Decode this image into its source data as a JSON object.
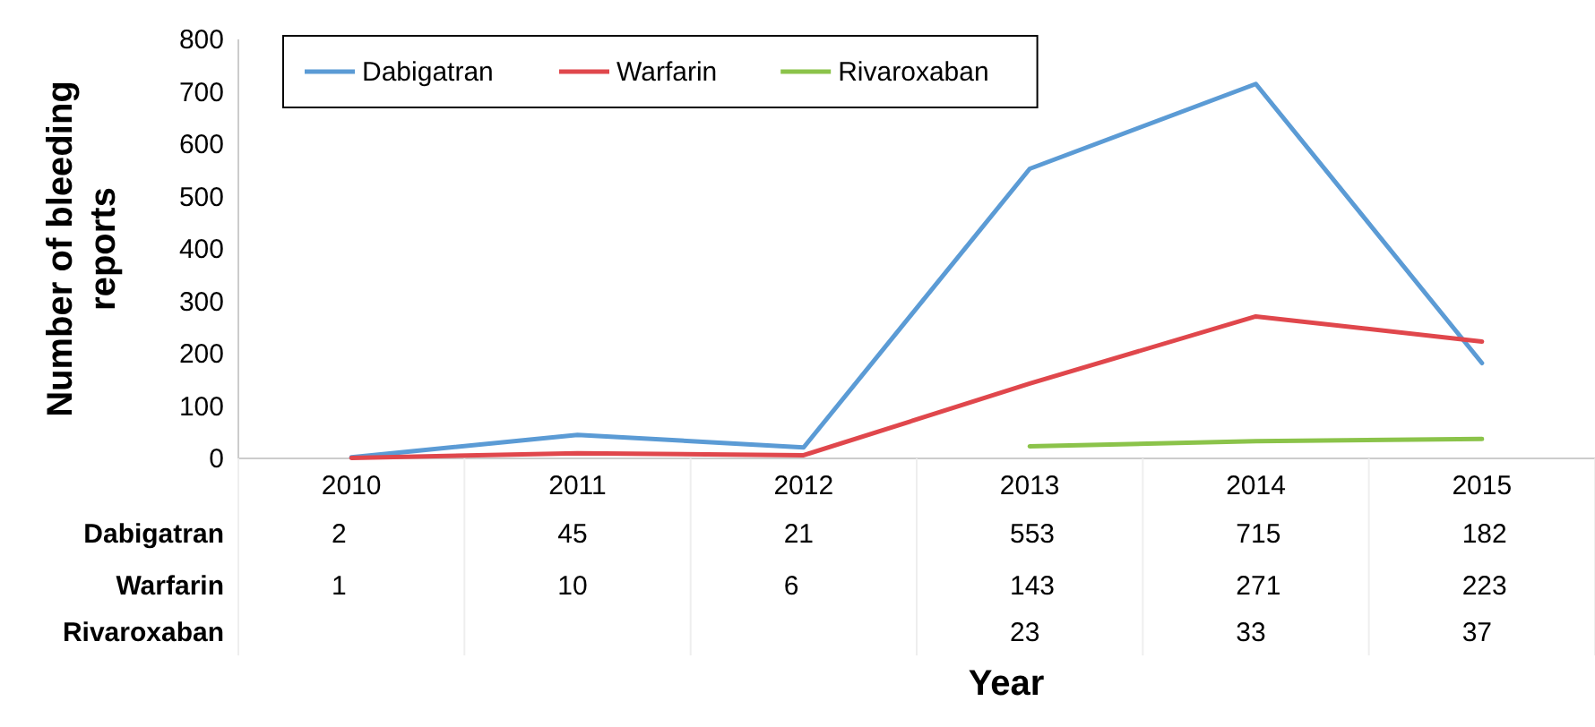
{
  "chart_data": {
    "type": "line",
    "xlabel": "Year",
    "ylabel": "Number of bleeding reports",
    "categories": [
      "2010",
      "2011",
      "2012",
      "2013",
      "2014",
      "2015"
    ],
    "series": [
      {
        "name": "Dabigatran",
        "color": "#5b9bd5",
        "values": [
          2,
          45,
          21,
          553,
          715,
          182
        ]
      },
      {
        "name": "Warfarin",
        "color": "#e0474c",
        "values": [
          1,
          10,
          6,
          143,
          271,
          223
        ]
      },
      {
        "name": "Rivaroxaban",
        "color": "#8bc34a",
        "values": [
          null,
          null,
          null,
          23,
          33,
          37
        ]
      }
    ],
    "ylim": [
      0,
      800
    ],
    "yticks": [
      0,
      100,
      200,
      300,
      400,
      500,
      600,
      700,
      800
    ],
    "data_labels": true,
    "legend": "top left",
    "grid": false
  }
}
